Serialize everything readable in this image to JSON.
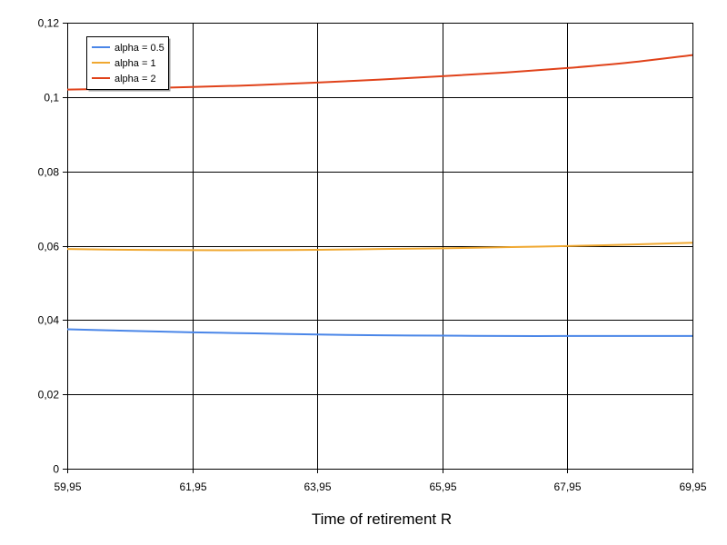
{
  "chart_data": {
    "type": "line",
    "title": "",
    "xlabel": "Time of retirement R",
    "ylabel": "",
    "x": [
      59.95,
      60.95,
      61.95,
      62.95,
      63.95,
      64.95,
      65.95,
      66.95,
      67.95,
      68.95,
      69.95
    ],
    "xlim": [
      59.95,
      69.95
    ],
    "ylim": [
      0,
      0.12
    ],
    "x_ticks": [
      59.95,
      61.95,
      63.95,
      65.95,
      67.95,
      69.95
    ],
    "x_tick_labels": [
      "59,95",
      "61,95",
      "63,95",
      "65,95",
      "67,95",
      "69,95"
    ],
    "y_ticks": [
      0,
      0.02,
      0.04,
      0.06,
      0.08,
      0.1,
      0.12
    ],
    "y_tick_labels": [
      "0",
      "0,02",
      "0,04",
      "0,06",
      "0,08",
      "0,1",
      "0,12"
    ],
    "grid": true,
    "legend_position": "top-left",
    "series": [
      {
        "name": "alpha = 0.5",
        "color": "#4a86e8",
        "values": [
          0.0375,
          0.0371,
          0.0367,
          0.0364,
          0.0361,
          0.0359,
          0.0358,
          0.0357,
          0.0357,
          0.0357,
          0.0357
        ]
      },
      {
        "name": "alpha = 1",
        "color": "#f0a830",
        "values": [
          0.0591,
          0.0589,
          0.0588,
          0.0588,
          0.0589,
          0.0591,
          0.0593,
          0.0596,
          0.0599,
          0.0603,
          0.0608
        ]
      },
      {
        "name": "alpha = 2",
        "color": "#e0421a",
        "values": [
          0.102,
          0.1023,
          0.1027,
          0.1032,
          0.1039,
          0.1047,
          0.1056,
          0.1066,
          0.1078,
          0.1093,
          0.1113
        ]
      }
    ]
  }
}
